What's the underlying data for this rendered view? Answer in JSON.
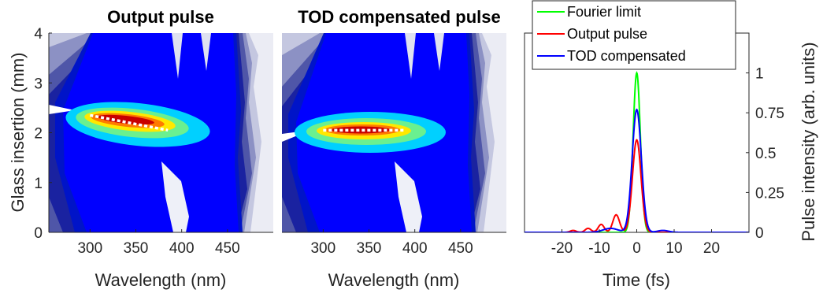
{
  "chart_data": [
    {
      "type": "heatmap",
      "title": "Output pulse",
      "xlabel": "Wavelength (nm)",
      "ylabel": "Glass insertion (mm)",
      "xlim": [
        255,
        500
      ],
      "ylim": [
        0,
        4
      ],
      "xticks": [
        "300",
        "350",
        "400",
        "450"
      ],
      "yticks": [
        "0",
        "1",
        "2",
        "3",
        "4"
      ],
      "colormap": "jet",
      "peak": {
        "wavelength": 350,
        "glass": 2.2
      },
      "marker_line": {
        "x": [
          300,
          385
        ],
        "y": [
          2.35,
          2.05
        ],
        "color": "#ffffff",
        "style": "dotted"
      }
    },
    {
      "type": "heatmap",
      "title": "TOD compensated pulse",
      "xlabel": "Wavelength (nm)",
      "xlim": [
        255,
        500
      ],
      "ylim": [
        0,
        4
      ],
      "xticks": [
        "300",
        "350",
        "400",
        "450"
      ],
      "colormap": "jet",
      "peak": {
        "wavelength": 345,
        "glass": 2.05
      },
      "marker_line": {
        "x": [
          300,
          390
        ],
        "y": [
          2.05,
          2.05
        ],
        "color": "#ffffff",
        "style": "dotted"
      }
    },
    {
      "type": "line",
      "xlabel": "Time (fs)",
      "ylabel": "Pulse intensity (arb. units)",
      "xlim": [
        -30,
        30
      ],
      "ylim": [
        0,
        1.25
      ],
      "xticks": [
        "-20",
        "-10",
        "0",
        "10",
        "20"
      ],
      "yticks": [
        "0",
        "0.25",
        "0.5",
        "0.75",
        "1"
      ],
      "legend_position": "top",
      "series": [
        {
          "name": "Fourier limit",
          "color": "#00ff00",
          "peak": 1.0,
          "fwhm": 2.3,
          "wings": []
        },
        {
          "name": "Output pulse",
          "color": "#ff0000",
          "peak": 0.58,
          "fwhm": 2.7,
          "wings": [
            [
              -5.5,
              0.11,
              0.9
            ],
            [
              -9.5,
              0.05,
              0.8
            ],
            [
              -13,
              0.025,
              0.8
            ],
            [
              -17,
              0.012,
              0.8
            ]
          ]
        },
        {
          "name": "TOD compensated",
          "color": "#0000ff",
          "peak": 0.77,
          "fwhm": 2.9,
          "wings": [
            [
              -7,
              0.025,
              2.0
            ],
            [
              7,
              0.012,
              1.5
            ]
          ]
        }
      ]
    }
  ]
}
